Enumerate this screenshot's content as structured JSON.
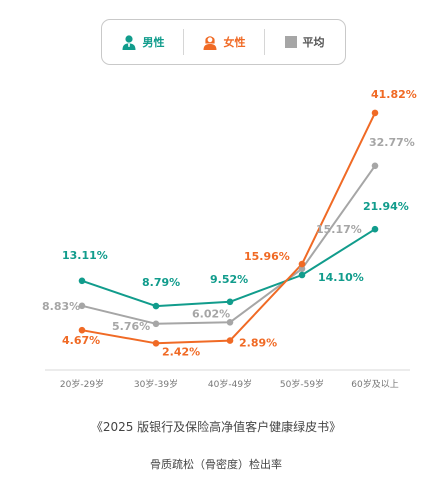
{
  "legend": {
    "male_label": "男性",
    "female_label": "女性",
    "avg_label": "平均"
  },
  "colors": {
    "male": "#119c8c",
    "female": "#f06a25",
    "avg": "#a6a6a6"
  },
  "chart_data": {
    "type": "line",
    "categories": [
      "20岁-29岁",
      "30岁-39岁",
      "40岁-49岁",
      "50岁-59岁",
      "60岁及以上"
    ],
    "series": [
      {
        "name": "男性",
        "key": "male",
        "values": [
          13.11,
          8.79,
          9.52,
          14.1,
          21.94
        ],
        "labels": [
          "13.11%",
          "8.79%",
          "9.52%",
          "14.10%",
          "21.94%"
        ]
      },
      {
        "name": "女性",
        "key": "female",
        "values": [
          4.67,
          2.42,
          2.89,
          15.96,
          41.82
        ],
        "labels": [
          "4.67%",
          "2.42%",
          "2.89%",
          "15.96%",
          "41.82%"
        ]
      },
      {
        "name": "平均",
        "key": "avg",
        "values": [
          8.83,
          5.76,
          6.02,
          15.17,
          32.77
        ],
        "labels": [
          "8.83%",
          "5.76%",
          "6.02%",
          "15.17%",
          "32.77%"
        ]
      }
    ],
    "grid": false,
    "legend_position": "top-center"
  },
  "footer": {
    "source": "《2025 版银行及保险高净值客户健康绿皮书》",
    "caption": "骨质疏松（骨密度）检出率"
  }
}
